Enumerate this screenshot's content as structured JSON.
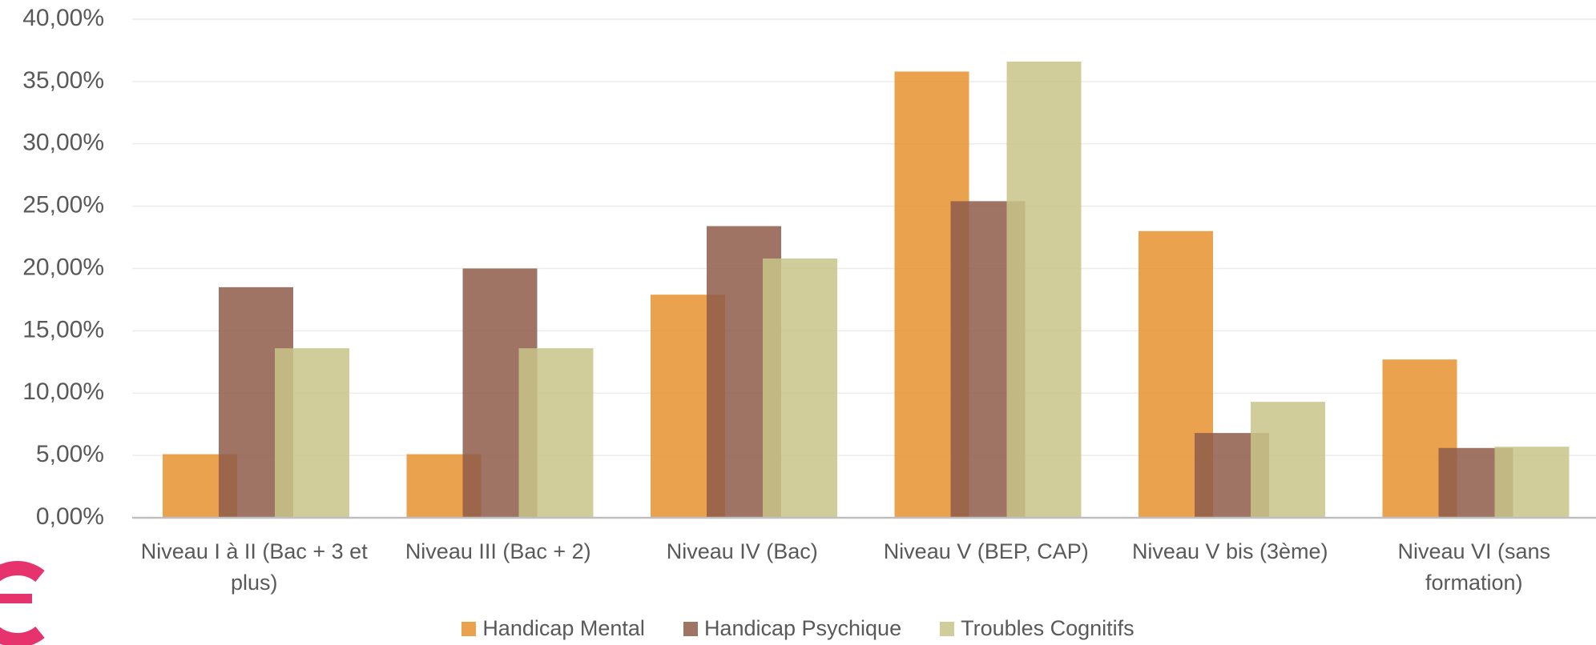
{
  "chart_data": {
    "type": "bar",
    "categories": [
      "Niveau I à II (Bac + 3 et plus)",
      "Niveau III (Bac + 2)",
      "Niveau IV (Bac)",
      "Niveau V (BEP, CAP)",
      "Niveau V bis (3ème)",
      "Niveau VI (sans formation)"
    ],
    "series": [
      {
        "name": "Handicap Mental",
        "color": "#E8922F",
        "values": [
          5.1,
          5.1,
          17.9,
          35.8,
          23.0,
          12.7
        ]
      },
      {
        "name": "Handicap Psychique",
        "color": "#8E5C4A",
        "values": [
          18.5,
          20.0,
          23.4,
          25.4,
          6.8,
          5.6
        ]
      },
      {
        "name": "Troubles Cognitifs",
        "color": "#C8C489",
        "values": [
          13.6,
          13.6,
          20.8,
          36.6,
          9.3,
          5.7
        ]
      }
    ],
    "ylim": [
      0,
      40
    ],
    "yticks": [
      {
        "value": 0,
        "label": "0,00%"
      },
      {
        "value": 5,
        "label": "5,00%"
      },
      {
        "value": 10,
        "label": "10,00%"
      },
      {
        "value": 15,
        "label": "15,00%"
      },
      {
        "value": 20,
        "label": "20,00%"
      },
      {
        "value": 25,
        "label": "25,00%"
      },
      {
        "value": 30,
        "label": "30,00%"
      },
      {
        "value": 35,
        "label": "35,00%"
      },
      {
        "value": 40,
        "label": "40,00%"
      }
    ],
    "grid": true,
    "legend": "bottom"
  }
}
